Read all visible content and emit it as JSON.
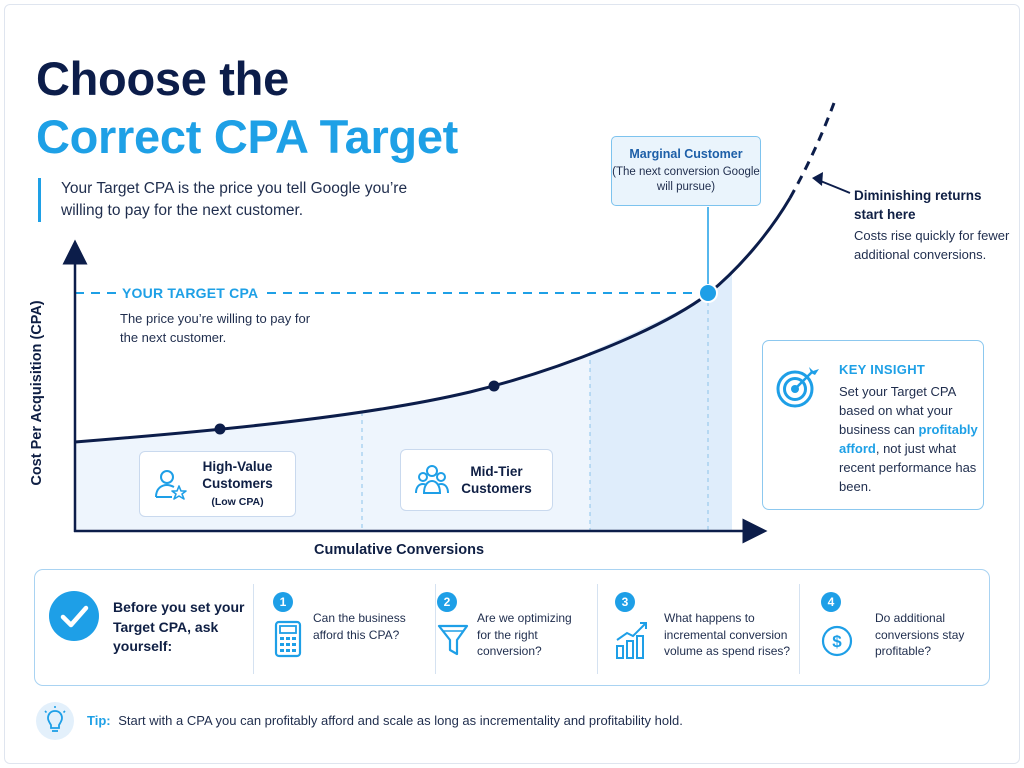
{
  "title": {
    "line1": "Choose the",
    "line2": "Correct CPA Target"
  },
  "intro": "Your Target CPA is the price you tell Google you’re willing to pay for the next customer.",
  "chart": {
    "ylabel": "Cost Per Acquisition (CPA)",
    "xlabel": "Cumulative Conversions",
    "target_label": "YOUR TARGET CPA",
    "target_desc": "The price you’re willing to pay for the next customer.",
    "segments": [
      {
        "title": "High-Value Customers",
        "subtitle": "(Low CPA)",
        "icon": "user-star-icon"
      },
      {
        "title": "Mid-Tier Customers",
        "icon": "users-group-icon"
      }
    ],
    "marginal": {
      "title": "Marginal Customer",
      "subtitle": "(The next conversion Google will pursue)"
    },
    "diminishing": {
      "title": "Diminishing returns start here",
      "desc": "Costs rise quickly for fewer additional conversions."
    },
    "colors": {
      "curve": "#0c1d4a",
      "accent": "#1ea0e6",
      "fill": "#e8f2fc"
    }
  },
  "insight": {
    "title": "KEY INSIGHT",
    "body_before": "Set your Target CPA based on what your business can ",
    "highlight": "profitably afford",
    "body_after": ", not just what recent performance has been.",
    "icon": "target-icon"
  },
  "checklist": {
    "heading": "Before you set your Target CPA, ask yourself:",
    "icon": "check-circle-icon",
    "questions": [
      {
        "num": "1",
        "text": "Can the business afford this CPA?",
        "icon": "calculator-icon"
      },
      {
        "num": "2",
        "text": "Are we optimizing for the right conversion?",
        "icon": "funnel-icon"
      },
      {
        "num": "3",
        "text": "What happens to incremental conversion volume as spend rises?",
        "icon": "growth-chart-icon"
      },
      {
        "num": "4",
        "text": "Do additional conversions stay profitable?",
        "icon": "dollar-coin-icon"
      }
    ]
  },
  "tip": {
    "label": "Tip:",
    "text": "Start with a CPA you can profitably afford and scale as long as incrementality and profitability hold.",
    "icon": "lightbulb-icon"
  }
}
